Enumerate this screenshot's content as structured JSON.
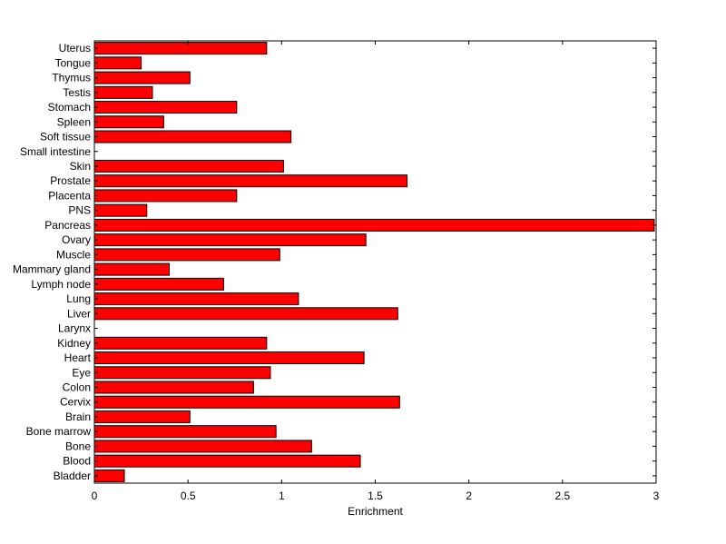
{
  "chart_data": {
    "type": "bar",
    "orientation": "horizontal",
    "xlabel": "Enrichment",
    "ylabel": "",
    "title": "",
    "xlim": [
      0,
      3
    ],
    "xticks": [
      "0",
      "0.5",
      "1",
      "1.5",
      "2",
      "2.5",
      "3"
    ],
    "grid": false,
    "bar_color": "#ff0000",
    "bar_edge_color": "#000000",
    "categories": [
      "Bladder",
      "Blood",
      "Bone",
      "Bone marrow",
      "Brain",
      "Cervix",
      "Colon",
      "Eye",
      "Heart",
      "Kidney",
      "Larynx",
      "Liver",
      "Lung",
      "Lymph node",
      "Mammary gland",
      "Muscle",
      "Ovary",
      "Pancreas",
      "PNS",
      "Placenta",
      "Prostate",
      "Skin",
      "Small intestine",
      "Soft tissue",
      "Spleen",
      "Stomach",
      "Testis",
      "Thymus",
      "Tongue",
      "Uterus"
    ],
    "values": [
      0.16,
      1.42,
      1.16,
      0.97,
      0.51,
      1.63,
      0.85,
      0.94,
      1.44,
      0.92,
      0.0,
      1.62,
      1.09,
      0.69,
      0.4,
      0.99,
      1.45,
      2.99,
      0.28,
      0.76,
      1.67,
      1.01,
      0.0,
      1.05,
      0.37,
      0.76,
      0.31,
      0.51,
      0.25,
      0.92
    ]
  }
}
